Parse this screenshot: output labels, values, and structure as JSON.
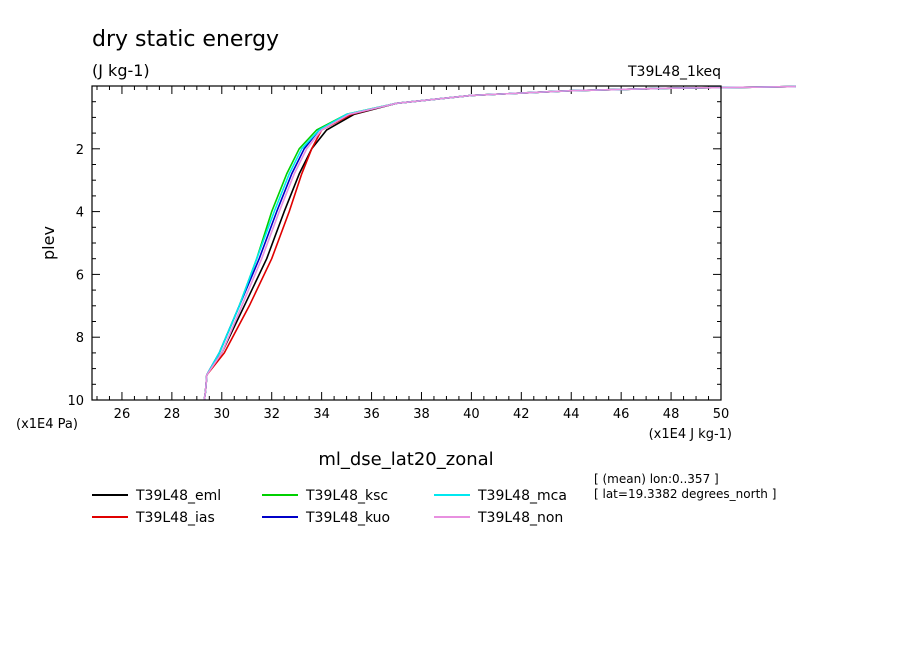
{
  "chart_data": {
    "type": "line",
    "title": "dry static energy",
    "subtitle": "(J kg-1)",
    "run_label": "T39L48_1keq",
    "ylabel": "plev",
    "y_unit": "(x1E4 Pa)",
    "x_unit": "(x1E4 J kg-1)",
    "xlabel": "ml_dse_lat20_zonal",
    "xlim": [
      24.8,
      50
    ],
    "ylim": [
      10,
      0
    ],
    "y_axis_inverted": true,
    "x_ticks": [
      26,
      28,
      30,
      32,
      34,
      36,
      38,
      40,
      42,
      44,
      46,
      48,
      50
    ],
    "x_tick_labels": [
      "26",
      "28",
      "30",
      "32",
      "34",
      "36",
      "38",
      "40",
      "42",
      "44",
      "46",
      "48",
      "50"
    ],
    "y_ticks": [
      2,
      4,
      6,
      8,
      10
    ],
    "y_tick_labels": [
      "2",
      "4",
      "6",
      "8",
      "10"
    ],
    "info": [
      "[ (mean) lon:0..357 ]",
      "[ lat=19.3382 degrees_north ]"
    ],
    "series": [
      {
        "name": "T39L48_eml",
        "color": "#000000",
        "x": [
          29.3,
          29.35,
          29.4,
          30.0,
          30.9,
          31.8,
          32.5,
          33.1,
          33.6,
          34.2,
          35.3,
          37.0,
          40.0,
          44.0,
          48.0,
          53.0
        ],
        "y": [
          10.0,
          9.7,
          9.2,
          8.5,
          7.0,
          5.5,
          4.0,
          2.8,
          2.0,
          1.4,
          0.9,
          0.55,
          0.3,
          0.15,
          0.07,
          0.02
        ]
      },
      {
        "name": "T39L48_ias",
        "color": "#e00000",
        "x": [
          29.3,
          29.35,
          29.4,
          30.1,
          31.1,
          32.0,
          32.7,
          33.2,
          33.6,
          34.0,
          35.2,
          37.0,
          40.0,
          44.0,
          48.0,
          53.0
        ],
        "y": [
          10.0,
          9.7,
          9.2,
          8.5,
          7.0,
          5.5,
          4.0,
          2.8,
          2.0,
          1.4,
          0.9,
          0.55,
          0.3,
          0.15,
          0.07,
          0.02
        ]
      },
      {
        "name": "T39L48_ksc",
        "color": "#00d000",
        "x": [
          29.3,
          29.35,
          29.4,
          29.9,
          30.7,
          31.4,
          32.0,
          32.6,
          33.1,
          33.8,
          35.0,
          37.0,
          40.0,
          44.0,
          48.0,
          53.0
        ],
        "y": [
          10.0,
          9.7,
          9.2,
          8.5,
          7.0,
          5.5,
          4.0,
          2.8,
          2.0,
          1.4,
          0.9,
          0.55,
          0.3,
          0.15,
          0.07,
          0.02
        ]
      },
      {
        "name": "T39L48_kuo",
        "color": "#0000c8",
        "x": [
          29.3,
          29.35,
          29.4,
          29.9,
          30.7,
          31.5,
          32.2,
          32.8,
          33.3,
          33.9,
          35.1,
          37.0,
          40.0,
          44.0,
          48.0,
          53.0
        ],
        "y": [
          10.0,
          9.7,
          9.2,
          8.5,
          7.0,
          5.5,
          4.0,
          2.8,
          2.0,
          1.4,
          0.9,
          0.55,
          0.3,
          0.15,
          0.07,
          0.02
        ]
      },
      {
        "name": "T39L48_mca",
        "color": "#00e8f0",
        "x": [
          29.3,
          29.35,
          29.4,
          29.9,
          30.7,
          31.4,
          32.1,
          32.7,
          33.2,
          33.9,
          35.0,
          37.0,
          40.0,
          44.0,
          48.0,
          53.0
        ],
        "y": [
          10.0,
          9.7,
          9.2,
          8.5,
          7.0,
          5.5,
          4.0,
          2.8,
          2.0,
          1.4,
          0.9,
          0.55,
          0.3,
          0.15,
          0.07,
          0.02
        ]
      },
      {
        "name": "T39L48_non",
        "color": "#e890e0",
        "x": [
          29.3,
          29.35,
          29.4,
          30.0,
          30.8,
          31.6,
          32.3,
          32.9,
          33.4,
          34.0,
          35.1,
          37.0,
          40.0,
          44.0,
          48.0,
          53.0
        ],
        "y": [
          10.0,
          9.7,
          9.2,
          8.5,
          7.0,
          5.5,
          4.0,
          2.8,
          2.0,
          1.4,
          0.9,
          0.55,
          0.3,
          0.15,
          0.07,
          0.02
        ]
      }
    ]
  }
}
